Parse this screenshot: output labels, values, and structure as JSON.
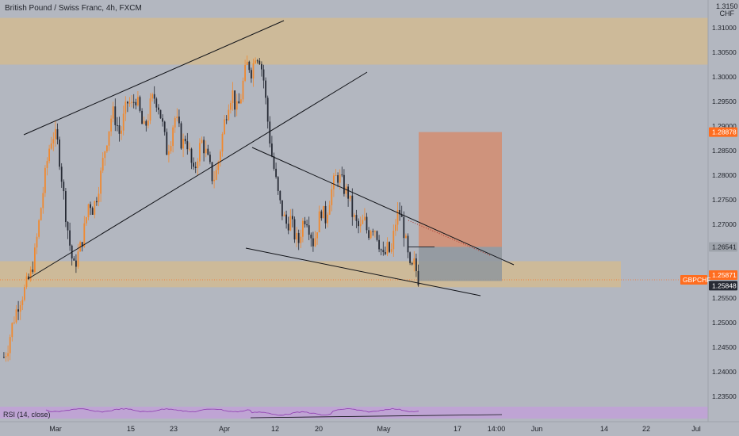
{
  "header": {
    "title": "British Pound / Swiss Franc, 4h, FXCM",
    "currency_top": "1.3150",
    "currency": "CHF"
  },
  "rsi": {
    "label": "RSI (14, close)"
  },
  "colors": {
    "background": "#b3b7c0",
    "supply_zone": "#cfb997",
    "candle_up": "#f0892f",
    "candle_down": "#262a34",
    "stop_box": "#d38d70",
    "target_box": "#8f969c",
    "price_badge": "#ff6d1f",
    "dark_badge": "#262a34",
    "rsi_line": "#8e3bb0",
    "rsi_band": "#bfa4d4"
  },
  "price_axis": {
    "ticks": [
      "1.31000",
      "1.30500",
      "1.30000",
      "1.29500",
      "1.29000",
      "1.28500",
      "1.28000",
      "1.27500",
      "1.27000",
      "1.26500",
      "1.26000",
      "1.25500",
      "1.25000",
      "1.24500",
      "1.24000",
      "1.23500"
    ],
    "badges": [
      {
        "text": "1.28878",
        "style": "orange"
      },
      {
        "text": "1.26541",
        "style": "grey"
      },
      {
        "text": "1.25871",
        "style": "orange"
      },
      {
        "text": "1.25848",
        "style": "dark"
      }
    ],
    "symbol_tag": "GBPCHF"
  },
  "time_axis": {
    "labels": [
      "Mar",
      "15",
      "23",
      "Apr",
      "12",
      "20",
      "May",
      "17",
      "14:00",
      "Jun",
      "14",
      "22",
      "Jul"
    ]
  },
  "chart_data": {
    "type": "candlestick",
    "title": "British Pound / Swiss Franc, 4h, FXCM",
    "y_axis_unit": "CHF",
    "ylim": [
      1.2315,
      1.3155
    ],
    "last_price": 1.25871,
    "zones": [
      {
        "kind": "supply",
        "from": 1.3025,
        "to": 1.312
      },
      {
        "kind": "demand",
        "from": 1.2572,
        "to": 1.2625
      }
    ],
    "trade_box": {
      "entry": 1.26541,
      "stop": 1.28878,
      "target": 1.25848
    },
    "path": [
      [
        1.243,
        1.245,
        1.249,
        1.252,
        1.2545,
        1.256,
        1.258,
        1.26,
        1.264,
        1.27,
        1.276,
        1.282,
        1.287,
        1.2885,
        1.286,
        1.279,
        1.272,
        1.266,
        1.261,
        1.2635,
        1.266,
        1.27,
        1.275,
        1.273,
        1.276,
        1.28,
        1.285,
        1.289,
        1.293,
        1.291,
        1.288,
        1.292,
        1.295,
        1.294,
        1.296,
        1.293,
        1.289,
        1.291,
        1.295,
        1.296,
        1.294,
        1.29,
        1.285,
        1.287,
        1.292,
        1.29,
        1.286,
        1.288,
        1.284,
        1.28,
        1.284,
        1.287,
        1.285,
        1.282,
        1.279,
        1.281,
        1.286,
        1.291,
        1.295,
        1.297,
        1.293,
        1.295,
        1.3,
        1.303,
        1.301,
        1.305,
        1.304,
        1.3,
        1.292,
        1.285,
        1.28,
        1.275,
        1.272,
        1.27,
        1.271,
        1.268,
        1.266,
        1.27,
        1.272,
        1.269,
        1.266,
        1.27,
        1.273,
        1.271,
        1.275,
        1.278,
        1.28,
        1.279,
        1.277,
        1.276,
        1.272,
        1.27,
        1.269,
        1.271,
        1.268,
        1.27,
        1.269,
        1.266,
        1.263,
        1.265,
        1.264,
        1.27,
        1.273,
        1.27,
        1.265,
        1.26,
        1.262,
        1.259
      ]
    ],
    "trendlines": [
      {
        "name": "upper channel",
        "from": [
          "2021-02-24",
          1.288
        ],
        "to": [
          "2021-04-07",
          1.3115
        ]
      },
      {
        "name": "lower channel",
        "from": [
          "2021-03-01",
          1.2605
        ],
        "to": [
          "2021-04-27",
          1.3012
        ]
      },
      {
        "name": "falling wedge top",
        "from": [
          "2021-04-05",
          1.2875
        ],
        "to": [
          "2021-05-21",
          1.262
        ]
      },
      {
        "name": "falling wedge bottom",
        "from": [
          "2021-04-07",
          1.267
        ],
        "to": [
          "2021-05-19",
          1.255
        ]
      }
    ]
  }
}
